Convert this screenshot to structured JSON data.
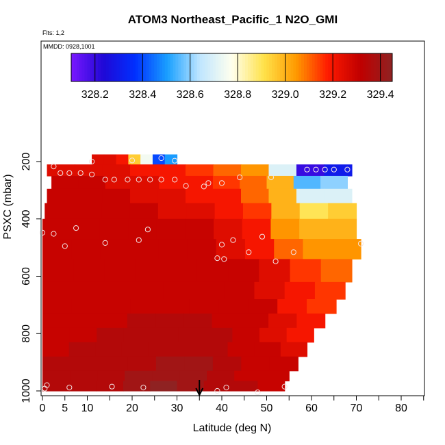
{
  "chart_data": {
    "type": "heatmap",
    "title": "ATOM3 Northeast_Pacific_1 N2O_GMI",
    "subtitle_flights": "Flts: 1,2",
    "subtitle_dates": "MMDD: 0928,1001",
    "xlabel": "Latitude (deg N)",
    "ylabel": "PSXC (mbar)",
    "xlim": [
      0,
      85
    ],
    "ylim": [
      1000,
      100
    ],
    "x_tick_labels": [
      "0",
      "5",
      "10",
      "20",
      "30",
      "40",
      "50",
      "60",
      "70",
      "80"
    ],
    "y_tick_labels": [
      "200",
      "400",
      "600",
      "800",
      "1000"
    ],
    "colorbar": {
      "range": [
        328.1,
        329.45
      ],
      "tick_labels": [
        "328.2",
        "328.4",
        "328.6",
        "328.8",
        "329.0",
        "329.2",
        "329.4"
      ],
      "colors": [
        "#7a18ff",
        "#1f08d6",
        "#0030ff",
        "#1aa0ff",
        "#bfe6ff",
        "#ffffee",
        "#ffe24a",
        "#ff9a00",
        "#ff1a00",
        "#c00000",
        "#8f2222"
      ]
    },
    "arrow_marker_latitude": 35,
    "layers": [
      {
        "p": [
          175,
          210
        ],
        "lat": [
          11,
          30
        ],
        "values": [
          329.25,
          329.25,
          329.2,
          328.95,
          328.75,
          328.4,
          328.5
        ]
      },
      {
        "p": [
          210,
          250
        ],
        "lat": [
          1,
          69
        ],
        "values": [
          329.25,
          329.25,
          329.25,
          329.2,
          329.2,
          329.15,
          329.1,
          329.05,
          328.7,
          328.2,
          328.3
        ]
      },
      {
        "p": [
          250,
          295
        ],
        "lat": [
          2,
          68
        ],
        "values": [
          329.3,
          329.3,
          329.25,
          329.25,
          329.2,
          329.2,
          329.15,
          329.1,
          329.0,
          328.55,
          328.6
        ]
      },
      {
        "p": [
          295,
          345
        ],
        "lat": [
          1,
          69
        ],
        "values": [
          329.3,
          329.3,
          329.3,
          329.25,
          329.25,
          329.2,
          329.2,
          329.1,
          329.0,
          328.7,
          328.7
        ]
      },
      {
        "p": [
          345,
          400
        ],
        "lat": [
          0.5,
          70
        ],
        "values": [
          329.3,
          329.3,
          329.3,
          329.3,
          329.25,
          329.25,
          329.2,
          329.15,
          329.0,
          328.9,
          328.95
        ]
      },
      {
        "p": [
          400,
          470
        ],
        "lat": [
          0,
          70
        ],
        "values": [
          329.3,
          329.3,
          329.3,
          329.3,
          329.3,
          329.3,
          329.25,
          329.2,
          329.05,
          329.0,
          329.0
        ]
      },
      {
        "p": [
          470,
          540
        ],
        "lat": [
          0,
          71
        ],
        "values": [
          329.3,
          329.3,
          329.3,
          329.3,
          329.3,
          329.3,
          329.25,
          329.2,
          329.1,
          329.05,
          329.05
        ]
      },
      {
        "p": [
          540,
          620
        ],
        "lat": [
          0,
          69
        ],
        "values": [
          329.3,
          329.3,
          329.3,
          329.3,
          329.3,
          329.3,
          329.3,
          329.25,
          329.15,
          329.1
        ]
      },
      {
        "p": [
          620,
          680
        ],
        "lat": [
          0,
          67.5
        ],
        "values": [
          329.3,
          329.3,
          329.3,
          329.3,
          329.3,
          329.3,
          329.3,
          329.25,
          329.2,
          329.15
        ]
      },
      {
        "p": [
          680,
          730
        ],
        "lat": [
          0,
          65.5
        ],
        "values": [
          329.3,
          329.3,
          329.3,
          329.3,
          329.3,
          329.3,
          329.3,
          329.3,
          329.2,
          329.15
        ]
      },
      {
        "p": [
          730,
          780
        ],
        "lat": [
          0,
          63
        ],
        "values": [
          329.3,
          329.3,
          329.3,
          329.35,
          329.35,
          329.35,
          329.3,
          329.3,
          329.25,
          329.2
        ]
      },
      {
        "p": [
          780,
          830
        ],
        "lat": [
          0,
          60.5
        ],
        "values": [
          329.3,
          329.3,
          329.35,
          329.35,
          329.35,
          329.35,
          329.35,
          329.3,
          329.25,
          329.2
        ]
      },
      {
        "p": [
          830,
          880
        ],
        "lat": [
          0,
          59
        ],
        "values": [
          329.3,
          329.35,
          329.35,
          329.35,
          329.35,
          329.35,
          329.35,
          329.3,
          329.3,
          329.25
        ]
      },
      {
        "p": [
          880,
          930
        ],
        "lat": [
          0,
          57
        ],
        "values": [
          329.35,
          329.35,
          329.35,
          329.35,
          329.4,
          329.4,
          329.35,
          329.3,
          329.3
        ]
      },
      {
        "p": [
          930,
          965
        ],
        "lat": [
          0,
          55
        ],
        "values": [
          329.35,
          329.35,
          329.35,
          329.4,
          329.4,
          329.4,
          329.35,
          329.3,
          329.3
        ]
      },
      {
        "p": [
          965,
          1000
        ],
        "lat": [
          0,
          54
        ],
        "values": [
          329.35,
          329.35,
          329.35,
          329.4,
          329.45,
          329.4,
          329.35,
          329.35,
          329.3
        ]
      }
    ],
    "points": [
      [
        11,
        200
      ],
      [
        20,
        196
      ],
      [
        26.5,
        188
      ],
      [
        29.5,
        197
      ],
      [
        2.5,
        217
      ],
      [
        4,
        240
      ],
      [
        6,
        240
      ],
      [
        8.5,
        240
      ],
      [
        11,
        245
      ],
      [
        14,
        263
      ],
      [
        16,
        263
      ],
      [
        19,
        263
      ],
      [
        21.5,
        263
      ],
      [
        24,
        263
      ],
      [
        26.5,
        263
      ],
      [
        29.5,
        263
      ],
      [
        32,
        285
      ],
      [
        36,
        287
      ],
      [
        37,
        275
      ],
      [
        40,
        275
      ],
      [
        44,
        255
      ],
      [
        51,
        255
      ],
      [
        59,
        228
      ],
      [
        61,
        228
      ],
      [
        63,
        228
      ],
      [
        65,
        228
      ],
      [
        68,
        228
      ],
      [
        0,
        448
      ],
      [
        2.5,
        452
      ],
      [
        7.5,
        432
      ],
      [
        23.5,
        437
      ],
      [
        5,
        495
      ],
      [
        14,
        484
      ],
      [
        21.5,
        474
      ],
      [
        40,
        490
      ],
      [
        42.5,
        474
      ],
      [
        39,
        537
      ],
      [
        40.5,
        540
      ],
      [
        46,
        516
      ],
      [
        49,
        462
      ],
      [
        52,
        548
      ],
      [
        56,
        516
      ],
      [
        71,
        486
      ],
      [
        1,
        980
      ],
      [
        0.5,
        992
      ],
      [
        6,
        988
      ],
      [
        15.5,
        985
      ],
      [
        22.5,
        988
      ],
      [
        39,
        1000
      ],
      [
        41,
        988
      ],
      [
        48,
        1005
      ],
      [
        54,
        985
      ]
    ]
  }
}
